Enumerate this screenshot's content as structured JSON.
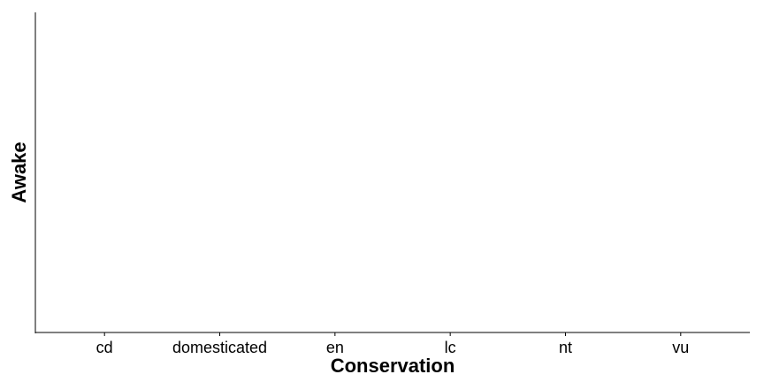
{
  "chart_data": {
    "type": "bar",
    "title": "",
    "xlabel": "Conservation",
    "ylabel": "Awake",
    "categories": [
      "cd",
      "domesticated",
      "en",
      "lc",
      "nt",
      "vu"
    ],
    "series": [],
    "grid": false,
    "legend": "none"
  },
  "colors": {
    "axis": "#000000",
    "background": "#ffffff"
  }
}
